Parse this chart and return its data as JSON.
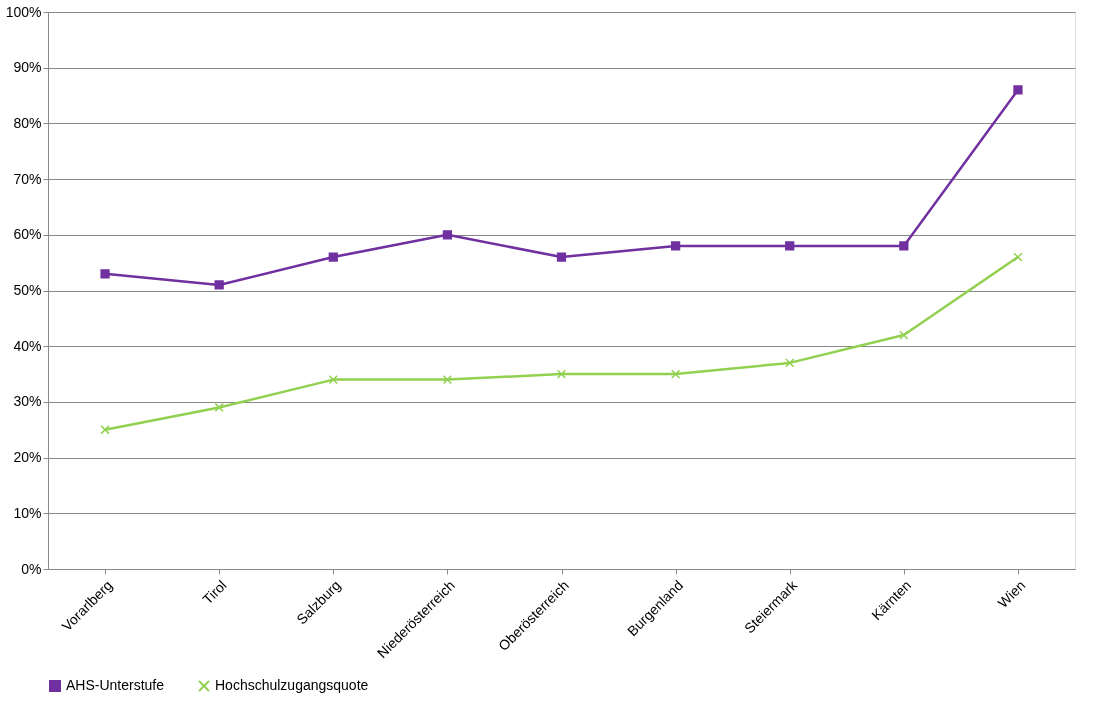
{
  "chart_data": {
    "type": "line",
    "categories": [
      "Vorarlberg",
      "Tirol",
      "Salzburg",
      "Niederösterreich",
      "Oberösterreich",
      "Burgenland",
      "Steiermark",
      "Kärnten",
      "Wien"
    ],
    "series": [
      {
        "name": "AHS-Unterstufe",
        "color": "#7030a0",
        "marker": "square",
        "values": [
          53,
          51,
          56,
          60,
          56,
          58,
          58,
          58,
          86
        ]
      },
      {
        "name": "Hochschulzugangsquote",
        "color": "#92d050",
        "marker": "cross",
        "values": [
          25,
          29,
          34,
          34,
          35,
          35,
          37,
          42,
          56
        ]
      }
    ],
    "ylim": [
      0,
      100
    ],
    "yticks": [
      {
        "value": 0,
        "label": "0%"
      },
      {
        "value": 10,
        "label": "10%"
      },
      {
        "value": 20,
        "label": "20%"
      },
      {
        "value": 30,
        "label": "30%"
      },
      {
        "value": 40,
        "label": "40%"
      },
      {
        "value": 50,
        "label": "50%"
      },
      {
        "value": 60,
        "label": "60%"
      },
      {
        "value": 70,
        "label": "70%"
      },
      {
        "value": 80,
        "label": "80%"
      },
      {
        "value": 90,
        "label": "90%"
      },
      {
        "value": 100,
        "label": "100%"
      }
    ],
    "grid": "y",
    "legend": "bottom",
    "line_style": "solid"
  }
}
